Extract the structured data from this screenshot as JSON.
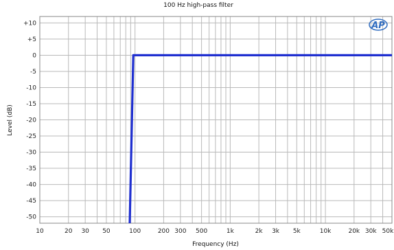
{
  "chart_data": {
    "type": "line",
    "title": "100 Hz high-pass filter",
    "xlabel": "Frequency (Hz)",
    "ylabel": "Level (dB)",
    "x_scale": "log",
    "xlim": [
      10,
      50000
    ],
    "ylim": [
      -52,
      12
    ],
    "grid": true,
    "x_ticks": [
      {
        "value": 10,
        "label": "10"
      },
      {
        "value": 20,
        "label": "20"
      },
      {
        "value": 30,
        "label": "30"
      },
      {
        "value": 50,
        "label": "50"
      },
      {
        "value": 100,
        "label": "100"
      },
      {
        "value": 200,
        "label": "200"
      },
      {
        "value": 300,
        "label": "300"
      },
      {
        "value": 500,
        "label": "500"
      },
      {
        "value": 1000,
        "label": "1k"
      },
      {
        "value": 2000,
        "label": "2k"
      },
      {
        "value": 3000,
        "label": "3k"
      },
      {
        "value": 5000,
        "label": "5k"
      },
      {
        "value": 10000,
        "label": "10k"
      },
      {
        "value": 20000,
        "label": "20k"
      },
      {
        "value": 30000,
        "label": "30k"
      },
      {
        "value": 50000,
        "label": "50k"
      }
    ],
    "y_ticks": [
      {
        "value": 10,
        "label": "+10"
      },
      {
        "value": 5,
        "label": "+5"
      },
      {
        "value": 0,
        "label": "0"
      },
      {
        "value": -5,
        "label": "-5"
      },
      {
        "value": -10,
        "label": "-10"
      },
      {
        "value": -15,
        "label": "-15"
      },
      {
        "value": -20,
        "label": "-20"
      },
      {
        "value": -25,
        "label": "-25"
      },
      {
        "value": -30,
        "label": "-30"
      },
      {
        "value": -35,
        "label": "-35"
      },
      {
        "value": -40,
        "label": "-40"
      },
      {
        "value": -45,
        "label": "-45"
      },
      {
        "value": -50,
        "label": "-50"
      }
    ],
    "series": [
      {
        "color": "#1f2fd0",
        "points": [
          {
            "x": 88,
            "y": -52
          },
          {
            "x": 96,
            "y": 0
          },
          {
            "x": 50000,
            "y": 0
          }
        ]
      }
    ]
  },
  "logo": {
    "text": "AP",
    "color": "#2f6cc0"
  }
}
